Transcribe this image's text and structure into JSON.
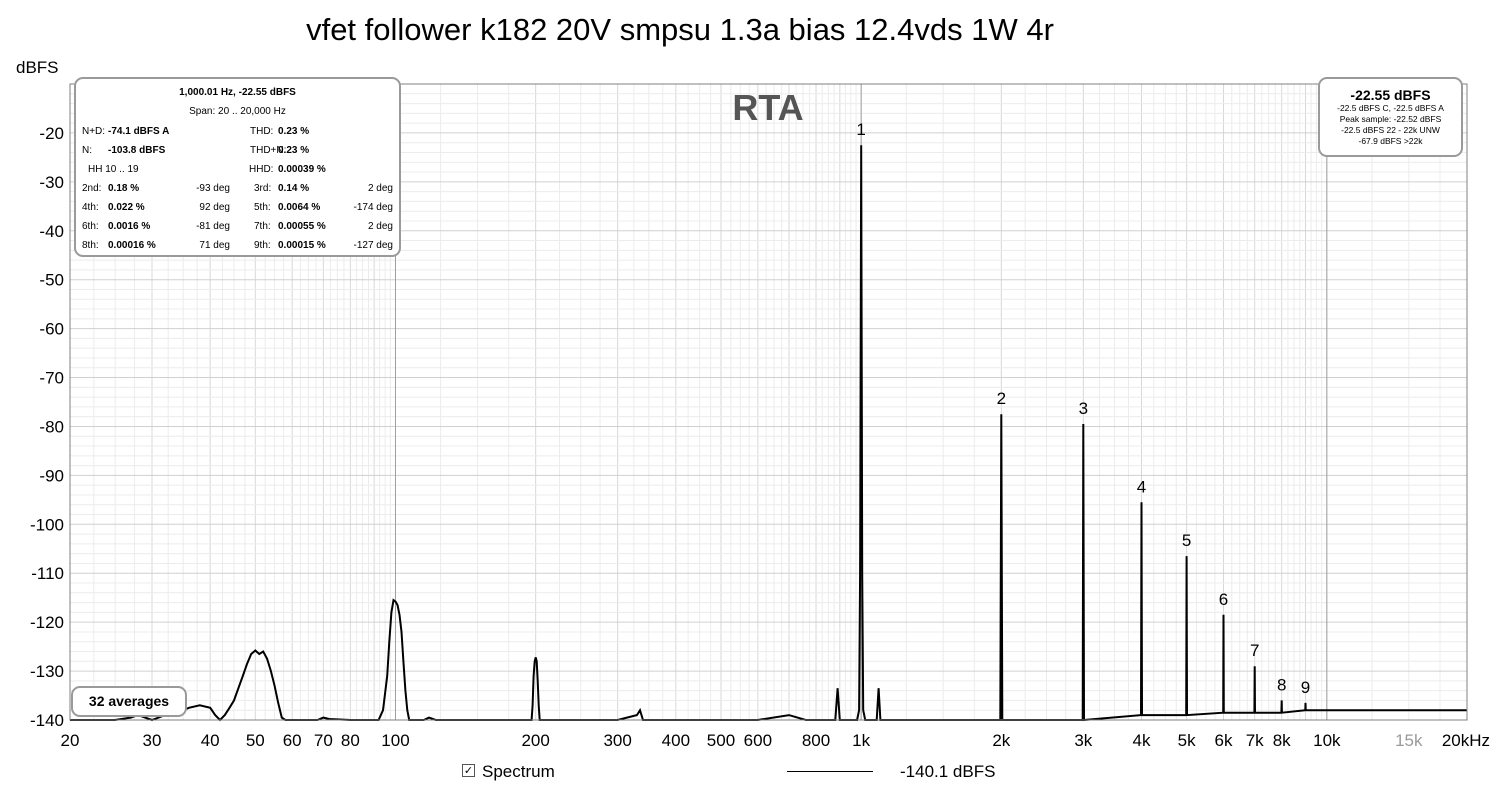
{
  "title": "vfet follower k182 20V smpsu 1.3a bias 12.4vds 1W 4r",
  "chart_data": {
    "type": "line",
    "title": "vfet follower k182 20V smpsu 1.3a bias 12.4vds 1W 4r",
    "overlay_label": "RTA",
    "ylabel": "dBFS",
    "xlabel": "",
    "x_scale": "log",
    "xlim": [
      20,
      20000
    ],
    "ylim": [
      -140,
      -10
    ],
    "grid": true,
    "y_ticks": [
      -20,
      -30,
      -40,
      -50,
      -60,
      -70,
      -80,
      -90,
      -100,
      -110,
      -120,
      -130,
      -140
    ],
    "x_ticks": [
      {
        "value": 20,
        "label": "20"
      },
      {
        "value": 30,
        "label": "30"
      },
      {
        "value": 40,
        "label": "40"
      },
      {
        "value": 50,
        "label": "50"
      },
      {
        "value": 60,
        "label": "60"
      },
      {
        "value": 70,
        "label": "70"
      },
      {
        "value": 80,
        "label": "80"
      },
      {
        "value": 100,
        "label": "100"
      },
      {
        "value": 200,
        "label": "200"
      },
      {
        "value": 300,
        "label": "300"
      },
      {
        "value": 400,
        "label": "400"
      },
      {
        "value": 500,
        "label": "500"
      },
      {
        "value": 600,
        "label": "600"
      },
      {
        "value": 800,
        "label": "800"
      },
      {
        "value": 1000,
        "label": "1k"
      },
      {
        "value": 2000,
        "label": "2k"
      },
      {
        "value": 3000,
        "label": "3k"
      },
      {
        "value": 4000,
        "label": "4k"
      },
      {
        "value": 5000,
        "label": "5k"
      },
      {
        "value": 6000,
        "label": "6k"
      },
      {
        "value": 7000,
        "label": "7k"
      },
      {
        "value": 8000,
        "label": "8k"
      },
      {
        "value": 10000,
        "label": "10k"
      },
      {
        "value": 15000,
        "label": "15k",
        "color": "#9a9a9a"
      },
      {
        "value": 20000,
        "label": "20kHz"
      }
    ],
    "harmonics": [
      {
        "label": "1",
        "x": 1000,
        "y": -22.5
      },
      {
        "label": "2",
        "x": 2000,
        "y": -77.5
      },
      {
        "label": "3",
        "x": 3000,
        "y": -79.5
      },
      {
        "label": "4",
        "x": 4000,
        "y": -95.5
      },
      {
        "label": "5",
        "x": 5000,
        "y": -106.5
      },
      {
        "label": "6",
        "x": 6000,
        "y": -118.5
      },
      {
        "label": "7",
        "x": 7000,
        "y": -129
      },
      {
        "label": "8",
        "x": 8000,
        "y": -136
      },
      {
        "label": "9",
        "x": 9000,
        "y": -136.5
      }
    ],
    "series": [
      {
        "name": "Spectrum",
        "color": "#000000",
        "points": [
          [
            20,
            -140
          ],
          [
            25,
            -140
          ],
          [
            27,
            -139.5
          ],
          [
            28,
            -139
          ],
          [
            30,
            -140
          ],
          [
            32,
            -139
          ],
          [
            34,
            -138.5
          ],
          [
            36,
            -137.5
          ],
          [
            38,
            -137
          ],
          [
            40,
            -137.5
          ],
          [
            41,
            -139
          ],
          [
            42,
            -140
          ],
          [
            43,
            -139
          ],
          [
            44,
            -137.5
          ],
          [
            45,
            -136
          ],
          [
            46,
            -133.5
          ],
          [
            47,
            -131
          ],
          [
            48,
            -128.5
          ],
          [
            49,
            -126.5
          ],
          [
            50,
            -125.8
          ],
          [
            51,
            -126.5
          ],
          [
            52,
            -126
          ],
          [
            53,
            -127.5
          ],
          [
            54,
            -130
          ],
          [
            55,
            -133
          ],
          [
            56,
            -136.5
          ],
          [
            57,
            -139.5
          ],
          [
            58,
            -140
          ],
          [
            68,
            -140
          ],
          [
            70,
            -139.5
          ],
          [
            72,
            -139.8
          ],
          [
            80,
            -140
          ],
          [
            92,
            -140
          ],
          [
            94,
            -138
          ],
          [
            96,
            -131
          ],
          [
            97,
            -124
          ],
          [
            98,
            -118
          ],
          [
            99,
            -115.5
          ],
          [
            100,
            -115.8
          ],
          [
            101,
            -116.5
          ],
          [
            102,
            -118.5
          ],
          [
            103,
            -122
          ],
          [
            104,
            -128
          ],
          [
            105,
            -134
          ],
          [
            106,
            -138
          ],
          [
            107,
            -140
          ],
          [
            115,
            -140
          ],
          [
            118,
            -139.5
          ],
          [
            122,
            -140
          ],
          [
            140,
            -140
          ],
          [
            196,
            -140
          ],
          [
            197,
            -137
          ],
          [
            198,
            -131
          ],
          [
            199,
            -128
          ],
          [
            200,
            -127.2
          ],
          [
            201,
            -128
          ],
          [
            202,
            -132
          ],
          [
            203,
            -137
          ],
          [
            204,
            -140
          ],
          [
            300,
            -140
          ],
          [
            330,
            -139
          ],
          [
            335,
            -138
          ],
          [
            340,
            -140
          ],
          [
            450,
            -140
          ],
          [
            600,
            -140
          ],
          [
            700,
            -139
          ],
          [
            760,
            -140
          ],
          [
            880,
            -140
          ],
          [
            890,
            -133.5
          ],
          [
            900,
            -140
          ],
          [
            980,
            -140
          ],
          [
            990,
            -138
          ],
          [
            995,
            -110
          ],
          [
            1000,
            -22.5
          ],
          [
            1005,
            -110
          ],
          [
            1010,
            -138
          ],
          [
            1020,
            -140
          ],
          [
            1080,
            -140
          ],
          [
            1090,
            -133.5
          ],
          [
            1100,
            -140
          ],
          [
            1990,
            -140
          ],
          [
            2000,
            -77.5
          ],
          [
            2010,
            -140
          ],
          [
            2990,
            -140
          ],
          [
            3000,
            -79.5
          ],
          [
            3010,
            -140
          ],
          [
            3990,
            -139
          ],
          [
            4000,
            -95.5
          ],
          [
            4010,
            -139
          ],
          [
            4990,
            -139
          ],
          [
            5000,
            -106.5
          ],
          [
            5010,
            -139
          ],
          [
            5990,
            -138.5
          ],
          [
            6000,
            -118.5
          ],
          [
            6010,
            -138.5
          ],
          [
            6990,
            -138.5
          ],
          [
            7000,
            -129
          ],
          [
            7010,
            -138.5
          ],
          [
            7990,
            -138.5
          ],
          [
            8000,
            -136
          ],
          [
            8010,
            -138.5
          ],
          [
            8990,
            -138
          ],
          [
            9000,
            -136.5
          ],
          [
            9010,
            -138
          ],
          [
            10000,
            -138
          ],
          [
            15000,
            -138
          ],
          [
            20000,
            -138
          ]
        ]
      }
    ]
  },
  "stats": {
    "header1": "1,000.01 Hz, -22.55 dBFS",
    "header2": "Span: 20 .. 20,000 Hz",
    "rows": [
      [
        {
          "t": "N+D:"
        },
        {
          "t": "-74.1 dBFS A",
          "b": true
        },
        {
          "t": "THD:"
        },
        {
          "t": "0.23 %",
          "b": true
        }
      ],
      [
        {
          "t": "N:"
        },
        {
          "t": "-103.8 dBFS",
          "b": true
        },
        {
          "t": "THD+N:"
        },
        {
          "t": "0.23 %",
          "b": true
        }
      ],
      [
        {
          "t": "HH 10 .. 19"
        },
        {
          "t": "HHD:"
        },
        {
          "t": "0.00039 %",
          "b": true
        }
      ],
      [
        {
          "t": "2nd:"
        },
        {
          "t": "0.18 %",
          "b": true
        },
        {
          "t": "-93 deg"
        },
        {
          "t": "3rd:"
        },
        {
          "t": "0.14 %",
          "b": true
        },
        {
          "t": "2 deg"
        }
      ],
      [
        {
          "t": "4th:"
        },
        {
          "t": "0.022 %",
          "b": true
        },
        {
          "t": "92 deg"
        },
        {
          "t": "5th:"
        },
        {
          "t": "0.0064 %",
          "b": true
        },
        {
          "t": "-174 deg"
        }
      ],
      [
        {
          "t": "6th:"
        },
        {
          "t": "0.0016 %",
          "b": true
        },
        {
          "t": "-81 deg"
        },
        {
          "t": "7th:"
        },
        {
          "t": "0.00055 %",
          "b": true
        },
        {
          "t": "2 deg"
        }
      ],
      [
        {
          "t": "8th:"
        },
        {
          "t": "0.00016 %",
          "b": true
        },
        {
          "t": "71 deg"
        },
        {
          "t": "9th:"
        },
        {
          "t": "0.00015 %",
          "b": true
        },
        {
          "t": "-127 deg"
        }
      ]
    ]
  },
  "level_box": {
    "value": "-22.55 dBFS",
    "lines": [
      "-22.5 dBFS C, -22.5 dBFS A",
      "Peak sample: -22.52 dBFS",
      "-22.5 dBFS 22 - 22k UNW",
      "-67.9 dBFS >22k"
    ]
  },
  "averages": "32 averages",
  "legend": {
    "checked": true,
    "name": "Spectrum",
    "value": "-140.1 dBFS"
  }
}
